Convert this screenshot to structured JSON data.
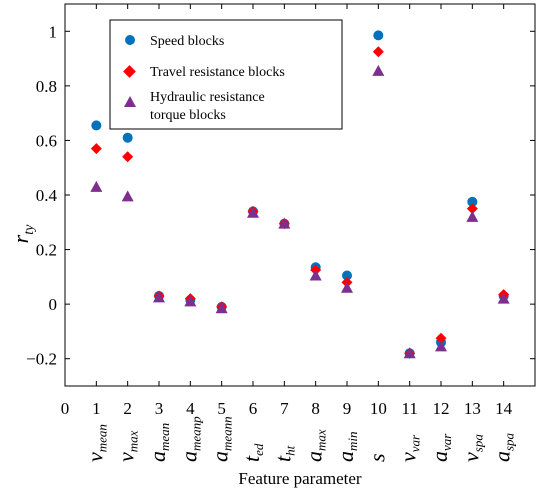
{
  "chart_data": {
    "type": "scatter",
    "xlabel": "Feature parameter",
    "ylabel_main": "r",
    "ylabel_sub": "ty",
    "xlim": [
      0,
      15
    ],
    "ylim": [
      -0.3,
      1.1
    ],
    "x_ticks": [
      0,
      1,
      2,
      3,
      4,
      5,
      6,
      7,
      8,
      9,
      10,
      11,
      12,
      13,
      14
    ],
    "y_ticks": [
      -0.2,
      0,
      0.2,
      0.4,
      0.6,
      0.8,
      1
    ],
    "y_tick_labels": [
      "−0.2",
      "0",
      "0.2",
      "0.4",
      "0.6",
      "0.8",
      "1"
    ],
    "feature_labels": [
      {
        "x": 1,
        "base": "v",
        "sub": "mean"
      },
      {
        "x": 2,
        "base": "v",
        "sub": "max"
      },
      {
        "x": 3,
        "base": "a",
        "sub": "mean"
      },
      {
        "x": 4,
        "base": "a",
        "sub": "meanp"
      },
      {
        "x": 5,
        "base": "a",
        "sub": "meann"
      },
      {
        "x": 6,
        "base": "t",
        "sub": "ed"
      },
      {
        "x": 7,
        "base": "t",
        "sub": "ht"
      },
      {
        "x": 8,
        "base": "a",
        "sub": "max"
      },
      {
        "x": 9,
        "base": "a",
        "sub": "min"
      },
      {
        "x": 10,
        "base": "s",
        "sub": ""
      },
      {
        "x": 11,
        "base": "v",
        "sub": "var"
      },
      {
        "x": 12,
        "base": "a",
        "sub": "var"
      },
      {
        "x": 13,
        "base": "v",
        "sub": "spa"
      },
      {
        "x": 14,
        "base": "a",
        "sub": "spa"
      }
    ],
    "legend_position": "top-left",
    "grid": false,
    "series": [
      {
        "name": "Speed blocks",
        "marker": "circle",
        "color": "#0072BD",
        "x": [
          1,
          2,
          3,
          4,
          5,
          6,
          7,
          8,
          9,
          10,
          11,
          12,
          13,
          14
        ],
        "y": [
          0.655,
          0.61,
          0.03,
          0.015,
          -0.01,
          0.34,
          0.295,
          0.135,
          0.105,
          0.985,
          -0.18,
          -0.14,
          0.375,
          0.03
        ]
      },
      {
        "name": "Travel resistance blocks",
        "marker": "diamond",
        "color": "#FF0000",
        "x": [
          1,
          2,
          3,
          4,
          5,
          6,
          7,
          8,
          9,
          10,
          11,
          12,
          13,
          14
        ],
        "y": [
          0.57,
          0.54,
          0.03,
          0.02,
          -0.01,
          0.34,
          0.295,
          0.125,
          0.08,
          0.925,
          -0.18,
          -0.125,
          0.35,
          0.035
        ]
      },
      {
        "name": "Hydraulic resistance torque blocks",
        "legend_lines": [
          "Hydraulic resistance",
          "torque blocks"
        ],
        "marker": "triangle",
        "color": "#7E2F8E",
        "x": [
          1,
          2,
          3,
          4,
          5,
          6,
          7,
          8,
          9,
          10,
          11,
          12,
          13,
          14
        ],
        "y": [
          0.43,
          0.395,
          0.025,
          0.01,
          -0.015,
          0.335,
          0.295,
          0.105,
          0.06,
          0.855,
          -0.18,
          -0.155,
          0.32,
          0.02
        ]
      }
    ]
  }
}
